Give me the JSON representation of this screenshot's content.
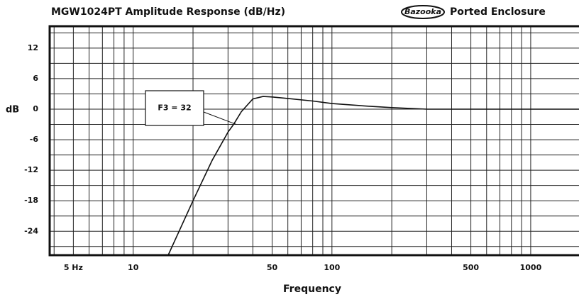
{
  "chart_data": {
    "type": "line",
    "title": "MGW1024PT Amplitude Response (dB/Hz)",
    "brand": "Bazooka",
    "subtitle": "Ported Enclosure",
    "y_label": "dB",
    "x_label": "Frequency",
    "log_x": true,
    "grid": true,
    "xlim": [
      3.8,
      1750
    ],
    "ylim": [
      -28.7,
      16.3
    ],
    "xticks": [
      {
        "value": 5,
        "label": "5 Hz"
      },
      10,
      50,
      100,
      500,
      1000
    ],
    "yticks": [
      12,
      6,
      0,
      -6,
      -12,
      -18,
      -24
    ],
    "xminorticks": [
      4,
      5,
      6,
      7,
      8,
      9,
      10,
      20,
      30,
      40,
      50,
      60,
      70,
      80,
      90,
      100,
      200,
      300,
      400,
      500,
      600,
      700,
      800,
      900,
      1000
    ],
    "yminorticks": [
      15,
      12,
      9,
      6,
      3,
      0,
      -3,
      -6,
      -9,
      -12,
      -15,
      -18,
      -21,
      -24,
      -27
    ],
    "series": [
      {
        "color": "#111111",
        "x": [
          15,
          20,
          25,
          30,
          32,
          35,
          40,
          45,
          50,
          60,
          80,
          100,
          150,
          200,
          300,
          500,
          1000,
          1750
        ],
        "values": [
          -28.7,
          -18,
          -10,
          -4.5,
          -3,
          -0.5,
          2,
          2.5,
          2.4,
          2.1,
          1.6,
          1.1,
          0.6,
          0.3,
          0,
          0,
          0,
          0
        ]
      }
    ],
    "annotation": {
      "text": "F3 = 32",
      "x": 32,
      "y": -3
    }
  }
}
